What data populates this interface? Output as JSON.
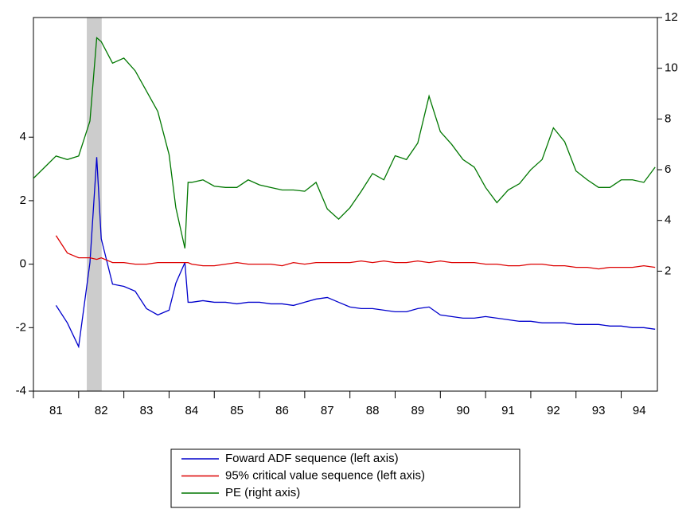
{
  "chart_data": {
    "type": "line",
    "x": [
      81,
      81.25,
      81.5,
      81.75,
      82,
      82.25,
      82.4,
      82.5,
      82.75,
      83,
      83.25,
      83.5,
      83.75,
      84,
      84.15,
      84.35,
      84.42,
      84.5,
      84.75,
      85,
      85.25,
      85.5,
      85.75,
      86,
      86.25,
      86.5,
      86.75,
      87,
      87.25,
      87.5,
      87.75,
      88,
      88.25,
      88.5,
      88.75,
      89,
      89.25,
      89.5,
      89.75,
      90,
      90.25,
      90.5,
      90.75,
      91,
      91.25,
      91.5,
      91.75,
      92,
      92.25,
      92.5,
      92.75,
      93,
      93.25,
      93.5,
      93.75,
      94,
      94.25,
      94.5,
      94.75
    ],
    "series": [
      {
        "name": "Foward ADF sequence (left axis)",
        "color": "#0000cc",
        "values": [
          null,
          null,
          -1.3,
          -1.85,
          -2.6,
          0.05,
          3.37,
          0.8,
          -0.63,
          -0.7,
          -0.85,
          -1.4,
          -1.6,
          -1.45,
          -0.6,
          0.05,
          -1.2,
          -1.2,
          -1.15,
          -1.2,
          -1.2,
          -1.25,
          -1.2,
          -1.2,
          -1.25,
          -1.25,
          -1.3,
          -1.2,
          -1.1,
          -1.05,
          -1.2,
          -1.35,
          -1.4,
          -1.4,
          -1.45,
          -1.5,
          -1.5,
          -1.4,
          -1.35,
          -1.6,
          -1.65,
          -1.7,
          -1.7,
          -1.65,
          -1.7,
          -1.75,
          -1.8,
          -1.8,
          -1.85,
          -1.85,
          -1.85,
          -1.9,
          -1.9,
          -1.9,
          -1.95,
          -1.95,
          -2.0,
          -2.0,
          -2.05
        ]
      },
      {
        "name": "95% critical value sequence (left axis)",
        "color": "#dd0000",
        "values": [
          null,
          null,
          0.9,
          0.35,
          0.2,
          0.2,
          0.15,
          0.2,
          0.05,
          0.05,
          0.0,
          0.0,
          0.05,
          0.05,
          0.05,
          0.05,
          0.05,
          0.0,
          -0.05,
          -0.05,
          0.0,
          0.05,
          0.0,
          0.0,
          0.0,
          -0.05,
          0.05,
          0.0,
          0.05,
          0.05,
          0.05,
          0.05,
          0.1,
          0.05,
          0.1,
          0.05,
          0.05,
          0.1,
          0.05,
          0.1,
          0.05,
          0.05,
          0.05,
          0.0,
          0.0,
          -0.05,
          -0.05,
          0.0,
          0.0,
          -0.05,
          -0.05,
          -0.1,
          -0.1,
          -0.15,
          -0.1,
          -0.1,
          -0.1,
          -0.05,
          -0.1
        ]
      },
      {
        "name": "PE (right axis)",
        "color": "#007700",
        "axis": "y2",
        "values": [
          5.66,
          6.1,
          6.54,
          6.4,
          6.54,
          7.92,
          11.2,
          11.05,
          10.2,
          10.4,
          9.9,
          9.1,
          8.3,
          6.6,
          4.5,
          2.9,
          5.5,
          5.5,
          5.6,
          5.35,
          5.3,
          5.3,
          5.6,
          5.4,
          5.3,
          5.2,
          5.2,
          5.15,
          5.5,
          4.45,
          4.05,
          4.5,
          5.15,
          5.85,
          5.6,
          6.55,
          6.4,
          7.05,
          8.9,
          7.5,
          7.0,
          6.4,
          6.1,
          5.3,
          4.7,
          5.2,
          5.45,
          6.0,
          6.4,
          7.65,
          7.1,
          5.95,
          5.6,
          5.3,
          5.3,
          5.6,
          5.6,
          5.5,
          6.1
        ]
      }
    ],
    "shaded_regions": [
      [
        82.18,
        82.51
      ]
    ],
    "shade_color": "#cccccc",
    "xlim": [
      81,
      94.8
    ],
    "xticks": [
      81,
      82,
      83,
      84,
      85,
      86,
      87,
      88,
      89,
      90,
      91,
      92,
      93,
      94
    ],
    "ylim": [
      -4,
      7.77
    ],
    "yticks": [
      -4,
      -2,
      0,
      2,
      4
    ],
    "y2lim": [
      -2.73,
      12
    ],
    "y2ticks": [
      2,
      4,
      6,
      8,
      10,
      12
    ],
    "legend": "bottom",
    "grid": false
  }
}
